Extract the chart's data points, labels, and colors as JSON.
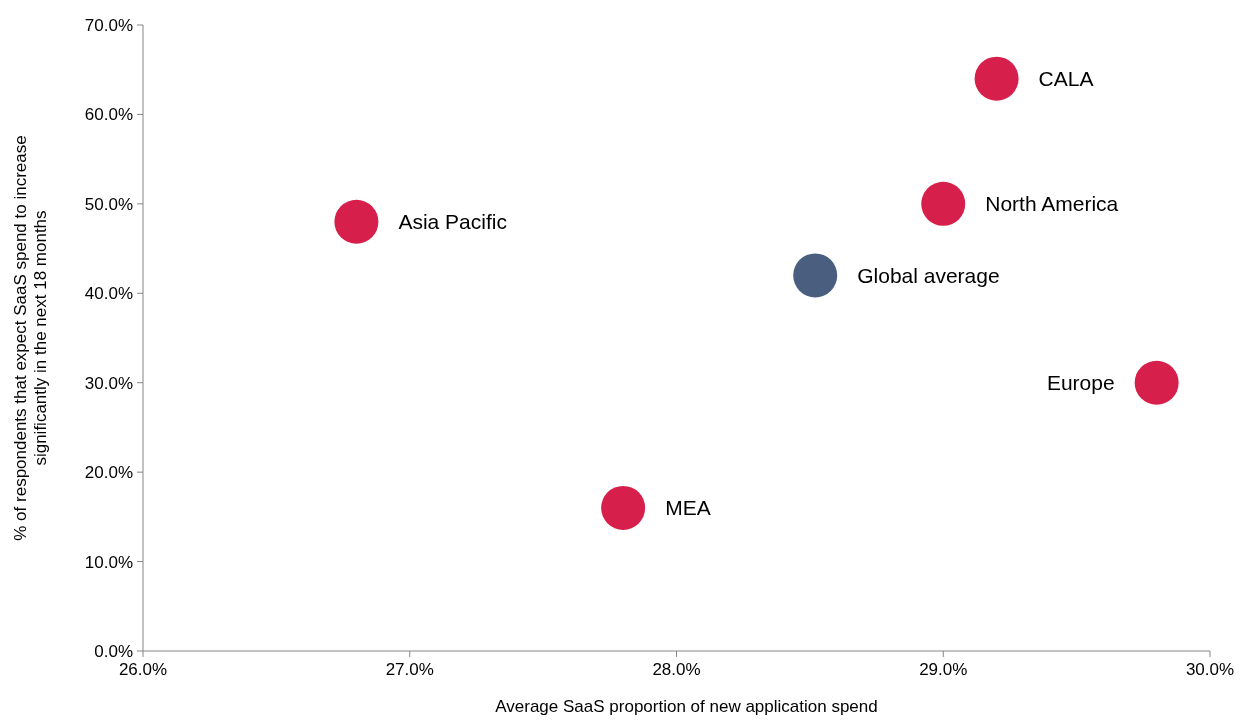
{
  "chart_data": {
    "type": "scatter",
    "xlabel": "Average SaaS proportion of new application spend",
    "ylabel": "% of respondents that expect SaaS spend to increase significantly in the next 18 months",
    "xlim": [
      26,
      30
    ],
    "xticks": [
      {
        "value": 26,
        "label": "26.0%"
      },
      {
        "value": 27,
        "label": "27.0%"
      },
      {
        "value": 28,
        "label": "28.0%"
      },
      {
        "value": 29,
        "label": "29.0%"
      },
      {
        "value": 30,
        "label": "30.0%"
      }
    ],
    "ylim": [
      0,
      70
    ],
    "yticks": [
      {
        "value": 0,
        "label": "0.0%"
      },
      {
        "value": 10,
        "label": "10.0%"
      },
      {
        "value": 20,
        "label": "20.0%"
      },
      {
        "value": 30,
        "label": "30.0%"
      },
      {
        "value": 40,
        "label": "40.0%"
      },
      {
        "value": 50,
        "label": "50.0%"
      },
      {
        "value": 60,
        "label": "60.0%"
      },
      {
        "value": 70,
        "label": "70.0%"
      }
    ],
    "marker": "circle",
    "grid": false,
    "series": [
      {
        "color": "#d6204b",
        "x": [
          26.8,
          27.8,
          29.0,
          29.2,
          29.8
        ],
        "values": [
          48,
          16,
          50,
          64,
          30
        ]
      },
      {
        "color": "#4a5f80",
        "x": [
          28.52
        ],
        "values": [
          42
        ]
      }
    ],
    "annotations": [
      {
        "text": "Asia Pacific",
        "x": 26.8,
        "y": 48
      },
      {
        "text": "MEA",
        "x": 27.8,
        "y": 16
      },
      {
        "text": "North America",
        "x": 29.0,
        "y": 50
      },
      {
        "text": "CALA",
        "x": 29.2,
        "y": 64
      },
      {
        "text": "Europe",
        "x": 29.8,
        "y": 30
      },
      {
        "text": "Global average",
        "x": 28.52,
        "y": 42
      }
    ]
  }
}
